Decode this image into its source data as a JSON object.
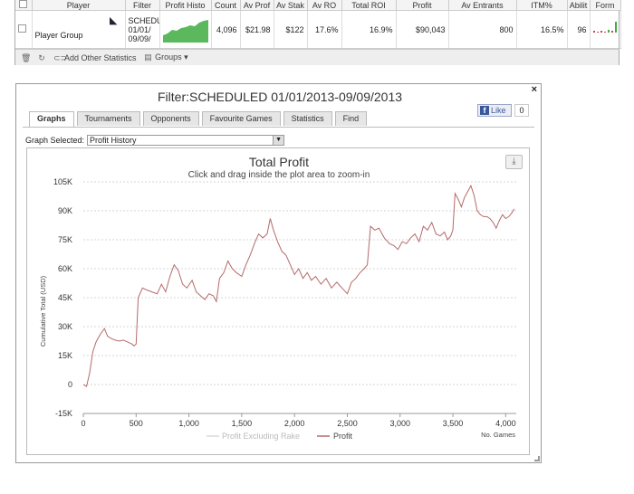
{
  "table": {
    "headers": [
      "Player",
      "Filter",
      "Profit Histo",
      "Count",
      "Av Prof",
      "Av Stak",
      "Av RO",
      "Total ROI",
      "Profit",
      "Av Entrants",
      "ITM%",
      "Abilit",
      "Form"
    ],
    "row": {
      "player": "Player Group",
      "filter_lines": [
        "SCHEDU",
        "01/01/",
        "09/09/"
      ],
      "count": "4,096",
      "av_profit": "$21.98",
      "av_stake": "$122",
      "av_roi": "17.6%",
      "total_roi": "16.9%",
      "profit": "$90,043",
      "av_entrants": "800",
      "itm": "16.5%",
      "ability": "96",
      "remove": "x"
    }
  },
  "toolbar": {
    "add_stats": "Add Other Statistics",
    "groups": "Groups"
  },
  "popup": {
    "title": "Filter:SCHEDULED 01/01/2013-09/09/2013",
    "close": "×",
    "like_label": "Like",
    "like_count": "0",
    "tabs": [
      "Graphs",
      "Tournaments",
      "Opponents",
      "Favourite Games",
      "Statistics",
      "Find"
    ],
    "graph_selected_label": "Graph Selected:",
    "graph_selected_value": "Profit History"
  },
  "chart_data": {
    "type": "line",
    "title": "Total Profit",
    "subtitle": "Click and drag inside the plot area to zoom-in",
    "ylabel": "Cumulative Total (USD)",
    "xlabel": "No. Games",
    "ylim": [
      -15000,
      105000
    ],
    "xlim": [
      0,
      4100
    ],
    "y_ticks": [
      "-15K",
      "0",
      "15K",
      "30K",
      "45K",
      "60K",
      "75K",
      "90K",
      "105K"
    ],
    "x_ticks": [
      "0",
      "500",
      "1,000",
      "1,500",
      "2,000",
      "2,500",
      "3,000",
      "3,500",
      "4,000"
    ],
    "grid": true,
    "legend_position": "bottom-center",
    "series": [
      {
        "name": "Profit Excluding Rake",
        "color": "#d9d9d9",
        "x": [],
        "y": []
      },
      {
        "name": "Profit",
        "color": "#b46a6a",
        "x": [
          0,
          30,
          60,
          90,
          120,
          160,
          200,
          230,
          260,
          300,
          340,
          380,
          420,
          460,
          480,
          500,
          520,
          560,
          600,
          650,
          700,
          740,
          780,
          820,
          860,
          900,
          940,
          980,
          1030,
          1070,
          1110,
          1150,
          1190,
          1230,
          1260,
          1290,
          1330,
          1370,
          1410,
          1450,
          1500,
          1540,
          1580,
          1620,
          1660,
          1700,
          1740,
          1770,
          1800,
          1840,
          1880,
          1920,
          1960,
          2000,
          2040,
          2080,
          2120,
          2160,
          2200,
          2250,
          2300,
          2350,
          2400,
          2450,
          2500,
          2540,
          2580,
          2620,
          2660,
          2690,
          2720,
          2760,
          2800,
          2850,
          2900,
          2940,
          2980,
          3020,
          3060,
          3100,
          3140,
          3180,
          3220,
          3260,
          3300,
          3340,
          3380,
          3420,
          3450,
          3480,
          3500,
          3520,
          3550,
          3580,
          3610,
          3640,
          3670,
          3700,
          3730,
          3760,
          3790,
          3820,
          3850,
          3880,
          3910,
          3940,
          3970,
          4000,
          4030,
          4060,
          4080
        ],
        "y": [
          0,
          -1000,
          6000,
          17000,
          22000,
          26000,
          29000,
          25000,
          24000,
          23000,
          22500,
          23000,
          22000,
          21000,
          20000,
          21000,
          45000,
          50000,
          49000,
          48000,
          47000,
          52000,
          48000,
          56000,
          62000,
          59000,
          52000,
          50000,
          54000,
          48000,
          46000,
          44000,
          47000,
          46000,
          43000,
          55000,
          58000,
          64000,
          60000,
          58000,
          56000,
          62000,
          67000,
          73000,
          78000,
          76000,
          78000,
          86000,
          80000,
          74000,
          69000,
          67000,
          62000,
          57000,
          60000,
          55000,
          58000,
          54000,
          56000,
          52000,
          55000,
          50000,
          53000,
          50000,
          47000,
          53000,
          55000,
          58000,
          60000,
          62000,
          82000,
          80000,
          81000,
          76000,
          73000,
          72000,
          70000,
          74000,
          73000,
          76000,
          78000,
          74000,
          82000,
          80000,
          84000,
          78000,
          77000,
          79000,
          75000,
          77000,
          80000,
          99000,
          96000,
          92000,
          97000,
          100000,
          103000,
          98000,
          90000,
          88000,
          87000,
          87000,
          86000,
          84000,
          81000,
          85000,
          88000,
          86000,
          87000,
          89000,
          91000
        ]
      }
    ]
  }
}
